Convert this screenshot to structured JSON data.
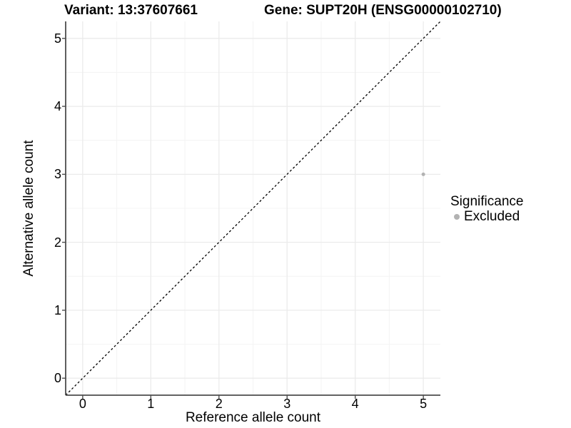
{
  "chart_data": {
    "type": "scatter",
    "title_left": "Variant: 13:37607661",
    "title_right": "Gene: SUPT20H (ENSG00000102710)",
    "xlabel": "Reference allele count",
    "ylabel": "Alternative allele count",
    "xlim": [
      -0.25,
      5.25
    ],
    "ylim": [
      -0.25,
      5.25
    ],
    "x_ticks": [
      0,
      1,
      2,
      3,
      4,
      5
    ],
    "y_ticks": [
      0,
      1,
      2,
      3,
      4,
      5
    ],
    "grid": {
      "major": true,
      "minor": true
    },
    "reference_line": {
      "slope": 1,
      "intercept": 0,
      "style": "dashed",
      "color": "#000000"
    },
    "points": [
      {
        "x": 5,
        "y": 3,
        "series": "Excluded"
      }
    ],
    "legend": {
      "title": "Significance",
      "position": "right",
      "items": [
        {
          "label": "Excluded",
          "color": "#b2b2b2"
        }
      ]
    },
    "colors": {
      "point": "#b2b2b2",
      "grid_major": "#ebebeb",
      "grid_minor": "#f4f4f4",
      "axis": "#4d4d4d",
      "text": "#000000",
      "background": "#ffffff"
    }
  }
}
